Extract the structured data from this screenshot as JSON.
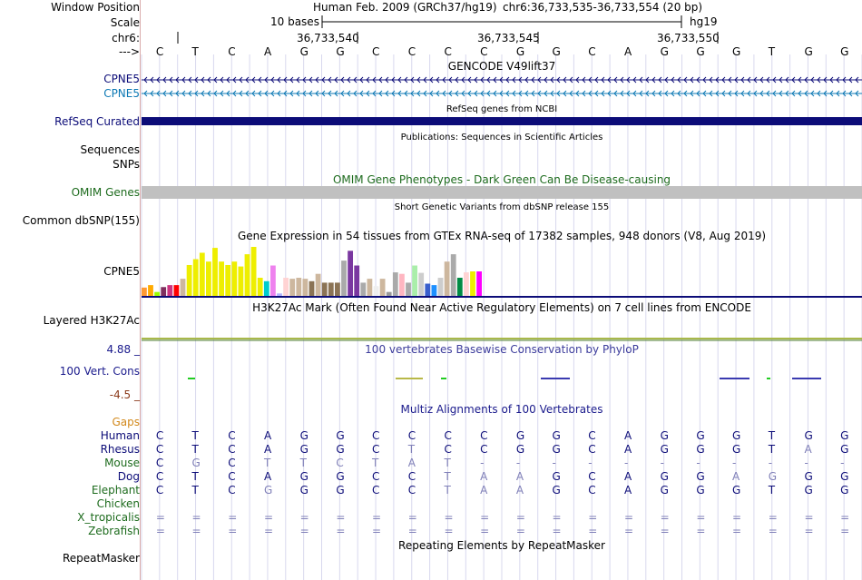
{
  "position": {
    "label": "Window Position",
    "assembly": "Human Feb. 2009 (GRCh37/hg19)",
    "range": "chr6:36,733,535-36,733,554 (20 bp)"
  },
  "scale": {
    "label": "Scale",
    "bases": "10 bases",
    "db": "hg19"
  },
  "chrom": {
    "label": "chr6:",
    "ticks": [
      "36,733,540",
      "36,733,545",
      "36,733,550"
    ]
  },
  "strand": {
    "label": "--->",
    "bases": [
      "C",
      "T",
      "C",
      "A",
      "G",
      "G",
      "C",
      "C",
      "C",
      "C",
      "G",
      "G",
      "C",
      "A",
      "G",
      "G",
      "G",
      "T",
      "G",
      "G"
    ]
  },
  "tracks": {
    "gencode": {
      "title": "GENCODE V49lift37",
      "rows": [
        {
          "name": "CPNE5",
          "color": "#0c0c78"
        },
        {
          "name": "CPNE5",
          "color": "#0c78b4"
        }
      ]
    },
    "refseq": {
      "title": "RefSeq genes from NCBI",
      "label": "RefSeq Curated",
      "color": "#0c0c78"
    },
    "publications": {
      "title": "Publications: Sequences in Scientific Articles",
      "labels": [
        "Sequences",
        "SNPs"
      ]
    },
    "omim": {
      "title": "OMIM Gene Phenotypes - Dark Green Can Be Disease-causing",
      "label": "OMIM Genes",
      "color": "#1d6b1d"
    },
    "dbsnp": {
      "title": "Short Genetic Variants from dbSNP release 155",
      "label": "Common dbSNP(155)"
    },
    "gtex": {
      "title": "Gene Expression in 54 tissues from GTEx RNA-seq of 17382 samples, 948 donors (V8, Aug 2019)",
      "label": "CPNE5",
      "scale_max": 100,
      "bars": [
        {
          "value": 17,
          "color": "#ff9933"
        },
        {
          "value": 22,
          "color": "#ffaa00"
        },
        {
          "value": 8,
          "color": "#99ff00"
        },
        {
          "value": 18,
          "color": "#7f2f5f"
        },
        {
          "value": 22,
          "color": "#cc3380"
        },
        {
          "value": 22,
          "color": "#ff0000"
        },
        {
          "value": 35,
          "color": "#cdb79e"
        },
        {
          "value": 63,
          "color": "#eeee00"
        },
        {
          "value": 75,
          "color": "#eeee00"
        },
        {
          "value": 88,
          "color": "#eeee00"
        },
        {
          "value": 70,
          "color": "#eeee00"
        },
        {
          "value": 98,
          "color": "#eeee00"
        },
        {
          "value": 70,
          "color": "#eeee00"
        },
        {
          "value": 63,
          "color": "#eeee00"
        },
        {
          "value": 70,
          "color": "#eeee00"
        },
        {
          "value": 60,
          "color": "#eeee00"
        },
        {
          "value": 85,
          "color": "#eeee00"
        },
        {
          "value": 100,
          "color": "#eeee00"
        },
        {
          "value": 37,
          "color": "#eeee00"
        },
        {
          "value": 30,
          "color": "#00cdcd"
        },
        {
          "value": 62,
          "color": "#ee82ee"
        },
        {
          "value": 5,
          "color": "#b3b3ff"
        },
        {
          "value": 37,
          "color": "#ffd3d3"
        },
        {
          "value": 35,
          "color": "#cdb79e"
        },
        {
          "value": 37,
          "color": "#cdb79e"
        },
        {
          "value": 35,
          "color": "#cdb79e"
        },
        {
          "value": 30,
          "color": "#8b7355"
        },
        {
          "value": 45,
          "color": "#cdb79e"
        },
        {
          "value": 27,
          "color": "#8b7355"
        },
        {
          "value": 27,
          "color": "#8b7355"
        },
        {
          "value": 27,
          "color": "#8b7355"
        },
        {
          "value": 72,
          "color": "#aaaaaa"
        },
        {
          "value": 92,
          "color": "#7a37a0"
        },
        {
          "value": 62,
          "color": "#7a37a0"
        },
        {
          "value": 27,
          "color": "#aaaaaa"
        },
        {
          "value": 35,
          "color": "#cdb79e"
        },
        {
          "value": 20,
          "color": "#eeeeee"
        },
        {
          "value": 35,
          "color": "#cdb79e"
        },
        {
          "value": 8,
          "color": "#999999"
        },
        {
          "value": 48,
          "color": "#aaaaaa"
        },
        {
          "value": 45,
          "color": "#ffb6c1"
        },
        {
          "value": 27,
          "color": "#aaaaaa"
        },
        {
          "value": 62,
          "color": "#aaeeaa"
        },
        {
          "value": 47,
          "color": "#cdcdcd"
        },
        {
          "value": 25,
          "color": "#3a5fcd"
        },
        {
          "value": 22,
          "color": "#1e90ff"
        },
        {
          "value": 37,
          "color": "#cdcdcd"
        },
        {
          "value": 70,
          "color": "#cdb79e"
        },
        {
          "value": 85,
          "color": "#aaaaaa"
        },
        {
          "value": 37,
          "color": "#008b45"
        },
        {
          "value": 48,
          "color": "#ffd3d3"
        },
        {
          "value": 50,
          "color": "#eeee00"
        },
        {
          "value": 50,
          "color": "#ff00ff"
        }
      ]
    },
    "h3k27ac": {
      "title": "H3K27Ac Mark (Often Found Near Active Regulatory Elements) on 7 cell lines from ENCODE",
      "label": "Layered H3K27Ac"
    },
    "phylop": {
      "title": "100 vertebrates Basewise Conservation by PhyloP",
      "label": "100 Vert. Cons",
      "max": "4.88 _",
      "min": "-4.5 _",
      "title_color": "#3d3d9c",
      "max_color": "#1a1a8c",
      "min_color": "#8b3a1a"
    },
    "multiz": {
      "title": "Multiz Alignments of 100 Vertebrates",
      "title_color": "#1a1a8c",
      "gaps_label": "Gaps",
      "gaps_color": "#d2891c",
      "species": [
        {
          "name": "Human",
          "color": "#0c0c78",
          "bases": [
            "C",
            "T",
            "C",
            "A",
            "G",
            "G",
            "C",
            "C",
            "C",
            "C",
            "G",
            "G",
            "C",
            "A",
            "G",
            "G",
            "G",
            "T",
            "G",
            "G"
          ],
          "diff": [
            0,
            0,
            0,
            0,
            0,
            0,
            0,
            0,
            0,
            0,
            0,
            0,
            0,
            0,
            0,
            0,
            0,
            0,
            0,
            0
          ]
        },
        {
          "name": "Rhesus",
          "color": "#0c0c78",
          "bases": [
            "C",
            "T",
            "C",
            "A",
            "G",
            "G",
            "C",
            "T",
            "C",
            "C",
            "G",
            "G",
            "C",
            "A",
            "G",
            "G",
            "G",
            "T",
            "A",
            "G"
          ],
          "diff": [
            0,
            0,
            0,
            0,
            0,
            0,
            0,
            1,
            0,
            0,
            0,
            0,
            0,
            0,
            0,
            0,
            0,
            0,
            1,
            0
          ]
        },
        {
          "name": "Mouse",
          "color": "#1d6b1d",
          "bases": [
            "C",
            "G",
            "C",
            "T",
            "T",
            "C",
            "T",
            "A",
            "T",
            "-",
            "-",
            "-",
            "-",
            "-",
            "-",
            "-",
            "-",
            "-",
            "-",
            "-"
          ],
          "diff": [
            0,
            1,
            0,
            1,
            1,
            1,
            1,
            1,
            1,
            1,
            1,
            1,
            1,
            1,
            1,
            1,
            1,
            1,
            1,
            1
          ]
        },
        {
          "name": "Dog",
          "color": "#0c0c78",
          "bases": [
            "C",
            "T",
            "C",
            "A",
            "G",
            "G",
            "C",
            "C",
            "T",
            "A",
            "A",
            "G",
            "C",
            "A",
            "G",
            "G",
            "A",
            "G",
            "G",
            "G"
          ],
          "diff": [
            0,
            0,
            0,
            0,
            0,
            0,
            0,
            0,
            1,
            1,
            1,
            0,
            0,
            0,
            0,
            0,
            1,
            1,
            0,
            0
          ]
        },
        {
          "name": "Elephant",
          "color": "#1d6b1d",
          "bases": [
            "C",
            "T",
            "C",
            "G",
            "G",
            "G",
            "C",
            "C",
            "T",
            "A",
            "A",
            "G",
            "C",
            "A",
            "G",
            "G",
            "G",
            "T",
            "G",
            "G"
          ],
          "diff": [
            0,
            0,
            0,
            1,
            0,
            0,
            0,
            0,
            1,
            1,
            1,
            0,
            0,
            0,
            0,
            0,
            0,
            0,
            0,
            0
          ]
        },
        {
          "name": "Chicken",
          "color": "#1d6b1d",
          "bases": [],
          "diff": []
        },
        {
          "name": "X_tropicalis",
          "color": "#1d6b1d",
          "bases": [
            "=",
            "=",
            "=",
            "=",
            "=",
            "=",
            "=",
            "=",
            "=",
            "=",
            "=",
            "=",
            "=",
            "=",
            "=",
            "=",
            "=",
            "=",
            "=",
            "="
          ],
          "diff": [
            1,
            1,
            1,
            1,
            1,
            1,
            1,
            1,
            1,
            1,
            1,
            1,
            1,
            1,
            1,
            1,
            1,
            1,
            1,
            1
          ]
        },
        {
          "name": "Zebrafish",
          "color": "#1d6b1d",
          "bases": [
            "=",
            "=",
            "=",
            "=",
            "=",
            "=",
            "=",
            "=",
            "=",
            "=",
            "=",
            "=",
            "=",
            "=",
            "=",
            "=",
            "=",
            "=",
            "=",
            "="
          ],
          "diff": [
            1,
            1,
            1,
            1,
            1,
            1,
            1,
            1,
            1,
            1,
            1,
            1,
            1,
            1,
            1,
            1,
            1,
            1,
            1,
            1
          ]
        }
      ]
    },
    "repeatmasker": {
      "title": "Repeating Elements by RepeatMasker",
      "label": "RepeatMasker"
    }
  }
}
